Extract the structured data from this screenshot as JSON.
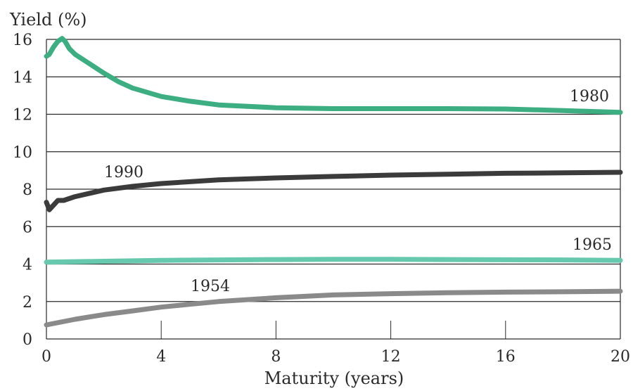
{
  "chart_data": {
    "type": "line",
    "title": "",
    "xlabel": "Maturity (years)",
    "ylabel": "Yield (%)",
    "xlim": [
      0,
      20
    ],
    "ylim": [
      0,
      16
    ],
    "x_ticks": [
      0,
      4,
      8,
      12,
      16,
      20
    ],
    "y_ticks": [
      0,
      2,
      4,
      6,
      8,
      10,
      12,
      14,
      16
    ],
    "grid": "horizontal",
    "colors": {
      "1980": "#3dae82",
      "1990": "#3b3b3b",
      "1965": "#66c9ad",
      "1954": "#8a8a8a",
      "grid": "#2a2a2a"
    },
    "series": [
      {
        "name": "1980",
        "x": [
          0,
          0.1,
          0.25,
          0.4,
          0.55,
          0.65,
          0.8,
          1,
          1.5,
          2,
          2.5,
          3,
          4,
          5,
          6,
          8,
          10,
          12,
          14,
          16,
          18,
          20
        ],
        "y": [
          15.1,
          15.2,
          15.6,
          15.9,
          16.05,
          15.9,
          15.5,
          15.2,
          14.7,
          14.2,
          13.75,
          13.4,
          12.95,
          12.7,
          12.5,
          12.35,
          12.3,
          12.3,
          12.3,
          12.28,
          12.2,
          12.1
        ]
      },
      {
        "name": "1990",
        "x": [
          0,
          0.1,
          0.25,
          0.4,
          0.6,
          1,
          2,
          3,
          4,
          5,
          6,
          8,
          10,
          12,
          14,
          16,
          18,
          20
        ],
        "y": [
          7.3,
          6.9,
          7.15,
          7.4,
          7.4,
          7.6,
          7.95,
          8.15,
          8.3,
          8.4,
          8.5,
          8.6,
          8.68,
          8.75,
          8.8,
          8.85,
          8.87,
          8.9
        ]
      },
      {
        "name": "1965",
        "x": [
          0,
          2,
          4,
          6,
          8,
          10,
          12,
          14,
          16,
          18,
          20
        ],
        "y": [
          4.1,
          4.15,
          4.2,
          4.22,
          4.24,
          4.25,
          4.25,
          4.24,
          4.23,
          4.22,
          4.2
        ]
      },
      {
        "name": "1954",
        "x": [
          0,
          1,
          2,
          3,
          4,
          5,
          6,
          8,
          10,
          12,
          14,
          16,
          18,
          20
        ],
        "y": [
          0.75,
          1.05,
          1.3,
          1.5,
          1.7,
          1.85,
          2.0,
          2.2,
          2.35,
          2.42,
          2.47,
          2.5,
          2.52,
          2.55
        ]
      }
    ],
    "labels": {
      "1980": "1980",
      "1990": "1990",
      "1965": "1965",
      "1954": "1954"
    }
  }
}
